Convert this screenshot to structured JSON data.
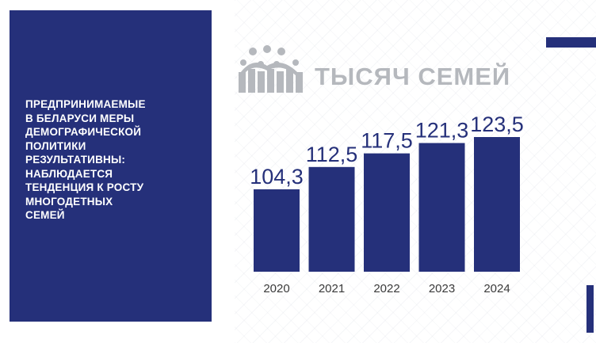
{
  "panel": {
    "lines": [
      "ПРЕДПРИНИМАЕМЫЕ",
      "В БЕЛАРУСИ МЕРЫ",
      "ДЕМОГРАФИЧЕСКОЙ",
      "ПОЛИТИКИ",
      "РЕЗУЛЬТАТИВНЫ:",
      "НАБЛЮДАЕТСЯ",
      "ТЕНДЕНЦИЯ К РОСТУ",
      "МНОГОДЕТНЫХ",
      "СЕМЕЙ"
    ]
  },
  "colors": {
    "primary": "#25307a",
    "title_gray": "#b5b8bd",
    "tick_text": "#3a3a3a"
  },
  "icons": {
    "logo": "family-icon"
  },
  "chart_data": {
    "type": "bar",
    "title": "ТЫСЯЧ СЕМЕЙ",
    "categories": [
      "2020",
      "2021",
      "2022",
      "2023",
      "2024"
    ],
    "values": [
      104.3,
      112.5,
      117.5,
      121.3,
      123.5
    ],
    "value_labels": [
      "104,3",
      "112,5",
      "117,5",
      "121,3",
      "123,5"
    ],
    "xlabel": "",
    "ylabel": "",
    "grid": false,
    "legend": "none"
  }
}
